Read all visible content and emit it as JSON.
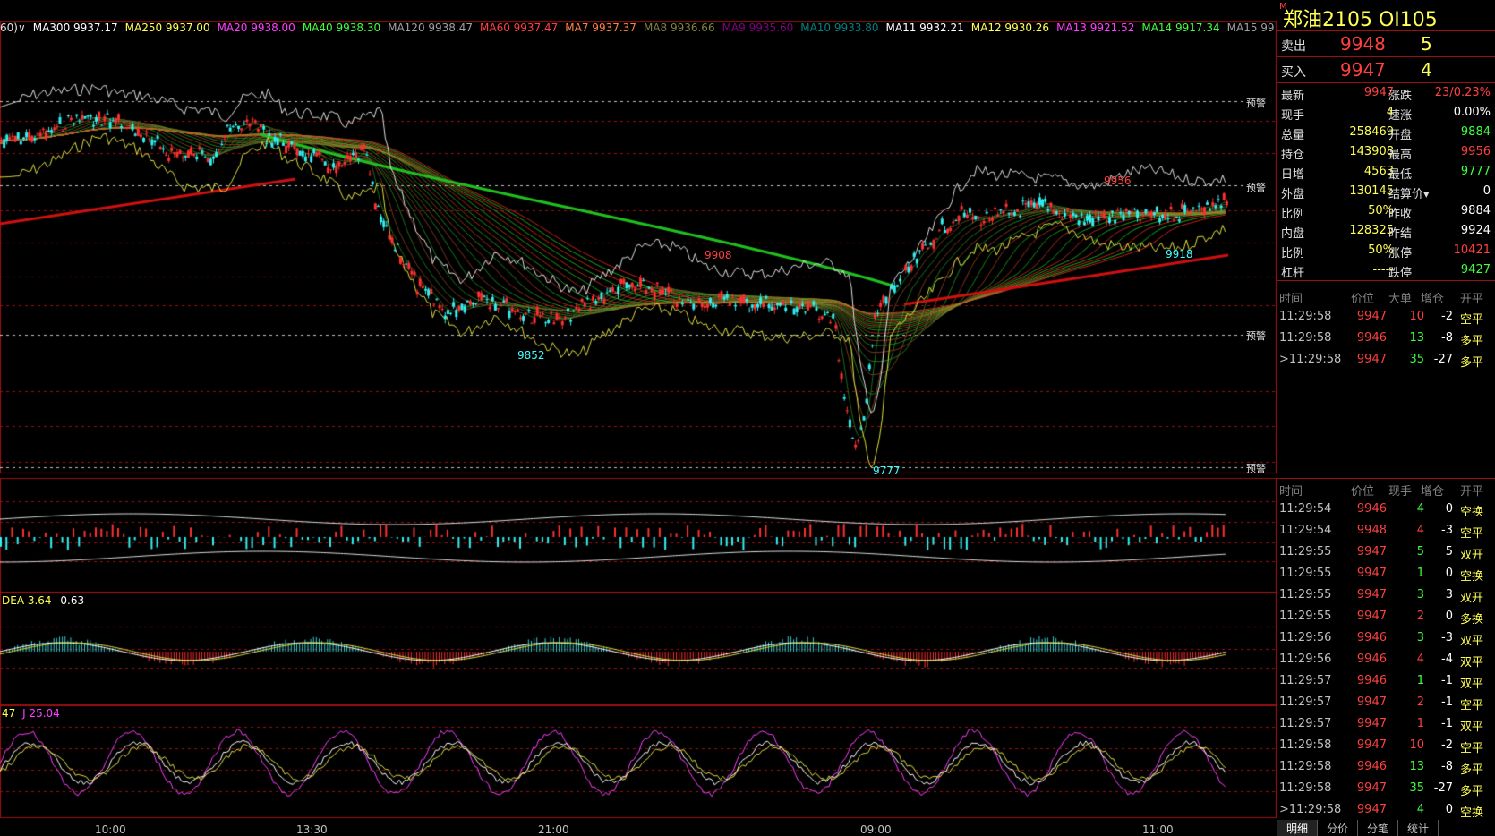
{
  "ma_bar": [
    {
      "text": "60)∨",
      "color": "#e0e0e0"
    },
    {
      "text": "MA300 9937.17",
      "color": "#ffffff"
    },
    {
      "text": "MA250 9937.00",
      "color": "#ffff54"
    },
    {
      "text": "MA20 9938.00",
      "color": "#ff40ff"
    },
    {
      "text": "MA40 9938.30",
      "color": "#40ff40"
    },
    {
      "text": "MA120 9938.47",
      "color": "#a0a0a0"
    },
    {
      "text": "MA60 9937.47",
      "color": "#ff4040"
    },
    {
      "text": "MA7 9937.37",
      "color": "#ff8040"
    },
    {
      "text": "MA8 9936.66",
      "color": "#808040"
    },
    {
      "text": "MA9 9935.60",
      "color": "#800080"
    },
    {
      "text": "MA10 9933.80",
      "color": "#008080"
    },
    {
      "text": "MA11 9932.21",
      "color": "#ffffff"
    },
    {
      "text": "MA12 9930.26",
      "color": "#ffff54"
    },
    {
      "text": "MA13 9921.52",
      "color": "#ff40ff"
    },
    {
      "text": "MA14 9917.34",
      "color": "#40ff40"
    },
    {
      "text": "MA15 9915.09",
      "color": "#a0a0a0"
    }
  ],
  "price_labels": {
    "high": "9956",
    "mid1": "9908",
    "low1": "9852",
    "low2": "9777",
    "mid2": "9918"
  },
  "alert_label": "预警",
  "macd_label": {
    "name": "DEA 3.64",
    "value": "0.63"
  },
  "kdj_label": {
    "prefix": "47",
    "j": "J 25.04"
  },
  "xaxis": [
    "10:00",
    "13:30",
    "21:00",
    "09:00",
    "11:00"
  ],
  "side": {
    "title": "郑油2105  OI105",
    "title_mark": "M",
    "ask": {
      "label": "卖出",
      "price": "9948",
      "vol": "5"
    },
    "bid": {
      "label": "买入",
      "price": "9947",
      "vol": "4"
    },
    "quotes": [
      {
        "k1": "最新",
        "v1": "9947",
        "c1": "#ff4040",
        "k2": "涨跌",
        "v2": "23/0.23%",
        "c2": "#ff4040"
      },
      {
        "k1": "现手",
        "v1": "4",
        "c1": "#ffff54",
        "k2": "速涨",
        "v2": "0.00%",
        "c2": "#ffffff"
      },
      {
        "k1": "总量",
        "v1": "258469",
        "c1": "#ffff54",
        "k2": "开盘",
        "v2": "9884",
        "c2": "#40ff40"
      },
      {
        "k1": "持仓",
        "v1": "143908",
        "c1": "#ffff54",
        "k2": "最高",
        "v2": "9956",
        "c2": "#ff4040"
      },
      {
        "k1": "日增",
        "v1": "4563",
        "c1": "#ffff54",
        "k2": "最低",
        "v2": "9777",
        "c2": "#40ff40"
      },
      {
        "k1": "外盘",
        "v1": "130145",
        "c1": "#ffff54",
        "k2": "结算价▾",
        "v2": "0",
        "c2": "#ffffff"
      },
      {
        "k1": "比例",
        "v1": "50%",
        "c1": "#ffff54",
        "k2": "昨收",
        "v2": "9884",
        "c2": "#ffffff"
      },
      {
        "k1": "内盘",
        "v1": "128325",
        "c1": "#ffff54",
        "k2": "昨结",
        "v2": "9924",
        "c2": "#ffffff"
      },
      {
        "k1": "比例",
        "v1": "50%",
        "c1": "#ffff54",
        "k2": "涨停",
        "v2": "10421",
        "c2": "#ff4040"
      },
      {
        "k1": "杠杆",
        "v1": "-----",
        "c1": "#ffff54",
        "k2": "跌停",
        "v2": "9427",
        "c2": "#40ff40"
      }
    ],
    "big_header": [
      "时间",
      "价位",
      "大单",
      "增仓",
      "开平"
    ],
    "big_rows": [
      {
        "t": "11:29:58",
        "p": "9947",
        "v": "10",
        "c": "-2",
        "o": "空平",
        "pc": "#ff4040",
        "vc": "#ff4040"
      },
      {
        "t": "11:29:58",
        "p": "9946",
        "v": "13",
        "c": "-8",
        "o": "多平",
        "pc": "#ff4040",
        "vc": "#40ff40"
      },
      {
        "t": ">11:29:58",
        "p": "9947",
        "v": "35",
        "c": "-27",
        "o": "多平",
        "pc": "#ff4040",
        "vc": "#40ff40"
      }
    ],
    "tick_header": [
      "时间",
      "价位",
      "现手",
      "增仓",
      "开平"
    ],
    "tick_rows": [
      {
        "t": "11:29:54",
        "p": "9946",
        "v": "4",
        "c": "0",
        "o": "空换",
        "pc": "#ff4040",
        "vc": "#40ff40"
      },
      {
        "t": "11:29:54",
        "p": "9948",
        "v": "4",
        "c": "-3",
        "o": "空平",
        "pc": "#ff4040",
        "vc": "#ff4040"
      },
      {
        "t": "11:29:55",
        "p": "9947",
        "v": "5",
        "c": "5",
        "o": "双开",
        "pc": "#ff4040",
        "vc": "#40ff40"
      },
      {
        "t": "11:29:55",
        "p": "9947",
        "v": "1",
        "c": "0",
        "o": "空换",
        "pc": "#ff4040",
        "vc": "#40ff40"
      },
      {
        "t": "11:29:55",
        "p": "9947",
        "v": "3",
        "c": "3",
        "o": "双开",
        "pc": "#ff4040",
        "vc": "#40ff40"
      },
      {
        "t": "11:29:55",
        "p": "9947",
        "v": "2",
        "c": "0",
        "o": "多换",
        "pc": "#ff4040",
        "vc": "#ff4040"
      },
      {
        "t": "11:29:56",
        "p": "9946",
        "v": "3",
        "c": "-3",
        "o": "双平",
        "pc": "#ff4040",
        "vc": "#40ff40"
      },
      {
        "t": "11:29:56",
        "p": "9946",
        "v": "4",
        "c": "-4",
        "o": "双平",
        "pc": "#ff4040",
        "vc": "#ff4040"
      },
      {
        "t": "11:29:57",
        "p": "9946",
        "v": "1",
        "c": "-1",
        "o": "双平",
        "pc": "#ff4040",
        "vc": "#40ff40"
      },
      {
        "t": "11:29:57",
        "p": "9947",
        "v": "2",
        "c": "-1",
        "o": "空平",
        "pc": "#ff4040",
        "vc": "#ff4040"
      },
      {
        "t": "11:29:57",
        "p": "9947",
        "v": "1",
        "c": "-1",
        "o": "双平",
        "pc": "#ff4040",
        "vc": "#ff4040"
      },
      {
        "t": "11:29:58",
        "p": "9947",
        "v": "10",
        "c": "-2",
        "o": "空平",
        "pc": "#ff4040",
        "vc": "#ff4040"
      },
      {
        "t": "11:29:58",
        "p": "9946",
        "v": "13",
        "c": "-8",
        "o": "多平",
        "pc": "#ff4040",
        "vc": "#40ff40"
      },
      {
        "t": "11:29:58",
        "p": "9947",
        "v": "35",
        "c": "-27",
        "o": "多平",
        "pc": "#ff4040",
        "vc": "#40ff40"
      },
      {
        "t": ">11:29:58",
        "p": "9947",
        "v": "4",
        "c": "0",
        "o": "空换",
        "pc": "#ff4040",
        "vc": "#40ff40"
      }
    ],
    "tabs": [
      "明细",
      "分价",
      "分笔",
      "统计"
    ]
  }
}
